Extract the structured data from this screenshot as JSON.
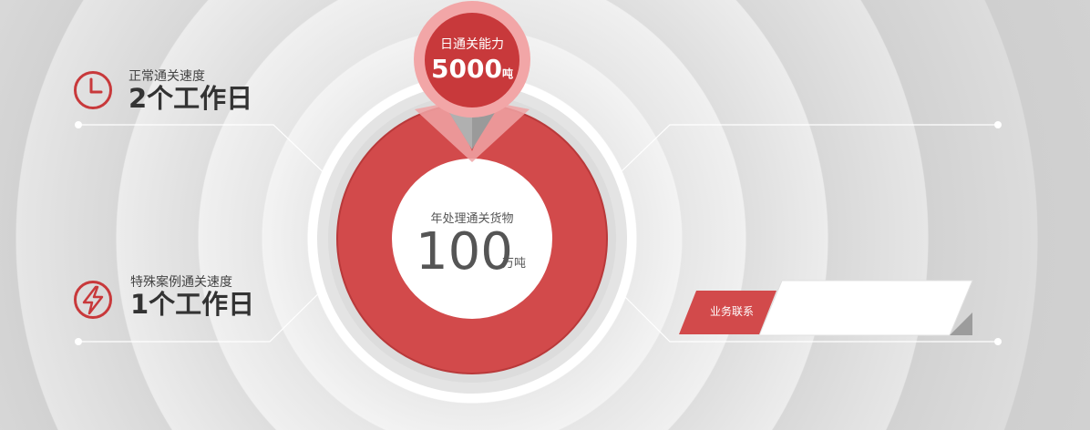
{
  "stats": [
    {
      "label": "正常通关速度",
      "value": "2个工作日",
      "icon": "clock-icon"
    },
    {
      "label": "特殊案例通关速度",
      "value": "1个工作日",
      "icon": "lightning-icon"
    }
  ],
  "center": {
    "label": "年处理通关货物",
    "number": "100",
    "unit": "万吨"
  },
  "pin": {
    "label": "日通关能力",
    "number": "5000",
    "unit": "吨"
  },
  "contact": {
    "label": "业务联系"
  },
  "colors": {
    "accent": "#d24a4b",
    "pin_outer": "#f0a0a2",
    "pin_inner": "#c8393b",
    "text_dark": "#333333"
  }
}
